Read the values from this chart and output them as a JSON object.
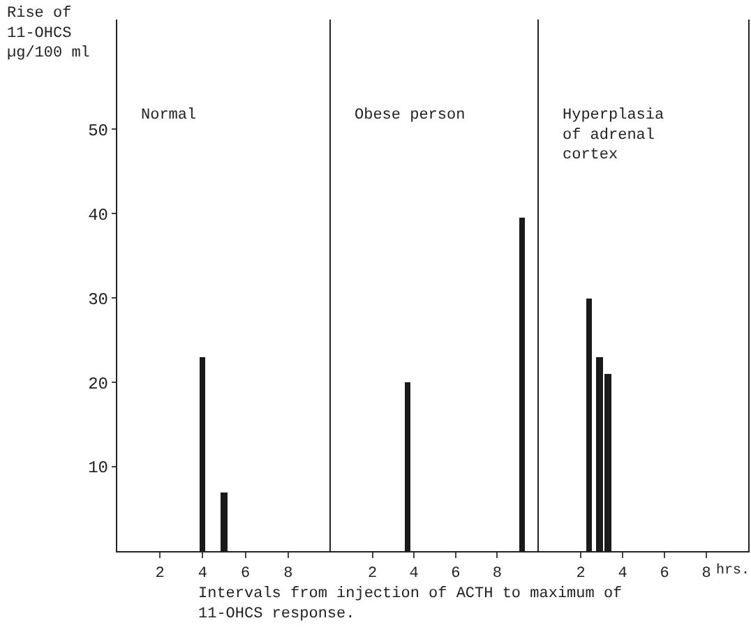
{
  "chart_data": [
    {
      "type": "bar",
      "title": "Normal",
      "ylabel": "Rise of\n11-OHCS\nµg/100 ml",
      "x": [
        4,
        5
      ],
      "values": [
        23,
        7
      ],
      "color": "#1a1a1a",
      "xlim": [
        0,
        10
      ],
      "xticks": [
        2,
        4,
        6,
        8
      ],
      "ylim": [
        0,
        63
      ],
      "yticks": [
        10,
        20,
        30,
        40,
        50
      ]
    },
    {
      "type": "bar",
      "title": "Obese person",
      "xlabel": "Intervals from injection of ACTH to maximum of\n11-OHCS response.",
      "x": [
        3.7,
        9.2
      ],
      "values": [
        20,
        39.5
      ],
      "color": "#1a1a1a",
      "xlim": [
        0,
        10
      ],
      "xticks": [
        2,
        4,
        6,
        8
      ],
      "ylim": [
        0,
        63
      ],
      "tick_labels": "x"
    },
    {
      "type": "bar",
      "title": "Hyperplasia\nof adrenal\ncortex",
      "xlabel": "hrs.",
      "x": [
        2.4,
        2.9,
        3.3
      ],
      "values": [
        30,
        23,
        21
      ],
      "color": "#1a1a1a",
      "xlim": [
        0,
        10
      ],
      "xticks": [
        2,
        4,
        6,
        8
      ],
      "ylim": [
        0,
        63
      ],
      "tick_labels": "x"
    }
  ]
}
